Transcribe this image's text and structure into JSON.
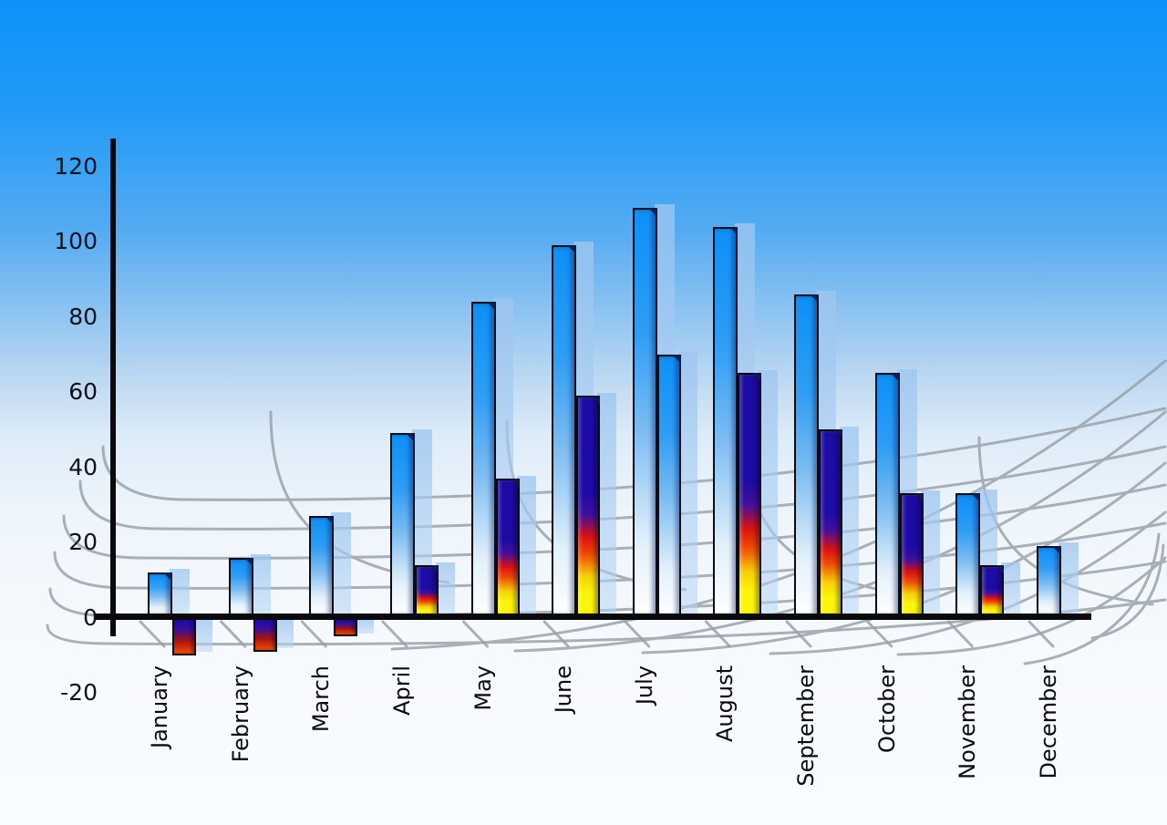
{
  "chart_data": {
    "type": "bar",
    "title": "",
    "categories": [
      "January",
      "February",
      "March",
      "April",
      "May",
      "June",
      "July",
      "August",
      "September",
      "October",
      "November",
      "December"
    ],
    "series": [
      {
        "name": "primary-blue-bars",
        "color": "#0d90f7",
        "values": [
          12,
          16,
          27,
          49,
          84,
          99,
          109,
          104,
          86,
          65,
          33,
          19
        ]
      },
      {
        "name": "secondary-heat-bars",
        "colors": {
          "top_navy": "#1c0ba4",
          "mid_red": "#d91110",
          "bottom_yellow": "#fbf50a"
        },
        "values": [
          -10,
          -9,
          -5,
          14,
          37,
          59,
          70,
          65,
          50,
          33,
          14,
          null
        ],
        "point_styles": [
          "heat",
          "heat",
          "heat",
          "heat",
          "heat",
          "heat",
          "blue",
          "heat",
          "heat",
          "heat",
          "heat",
          null
        ]
      }
    ],
    "y_axis": {
      "min": -20,
      "max": 120,
      "tick_step": 20,
      "ticks": [
        120,
        100,
        80,
        60,
        40,
        20,
        0,
        -20
      ],
      "grid": false
    },
    "x_axis": {
      "label_rotation_degrees": -90
    },
    "legend": {
      "visible": false
    },
    "background": {
      "sky_top": "#0c93fb",
      "sky_bottom": "#f9fcfe",
      "mesh_color": "#99a0a8",
      "axis_color": "#0a0a0e"
    }
  }
}
